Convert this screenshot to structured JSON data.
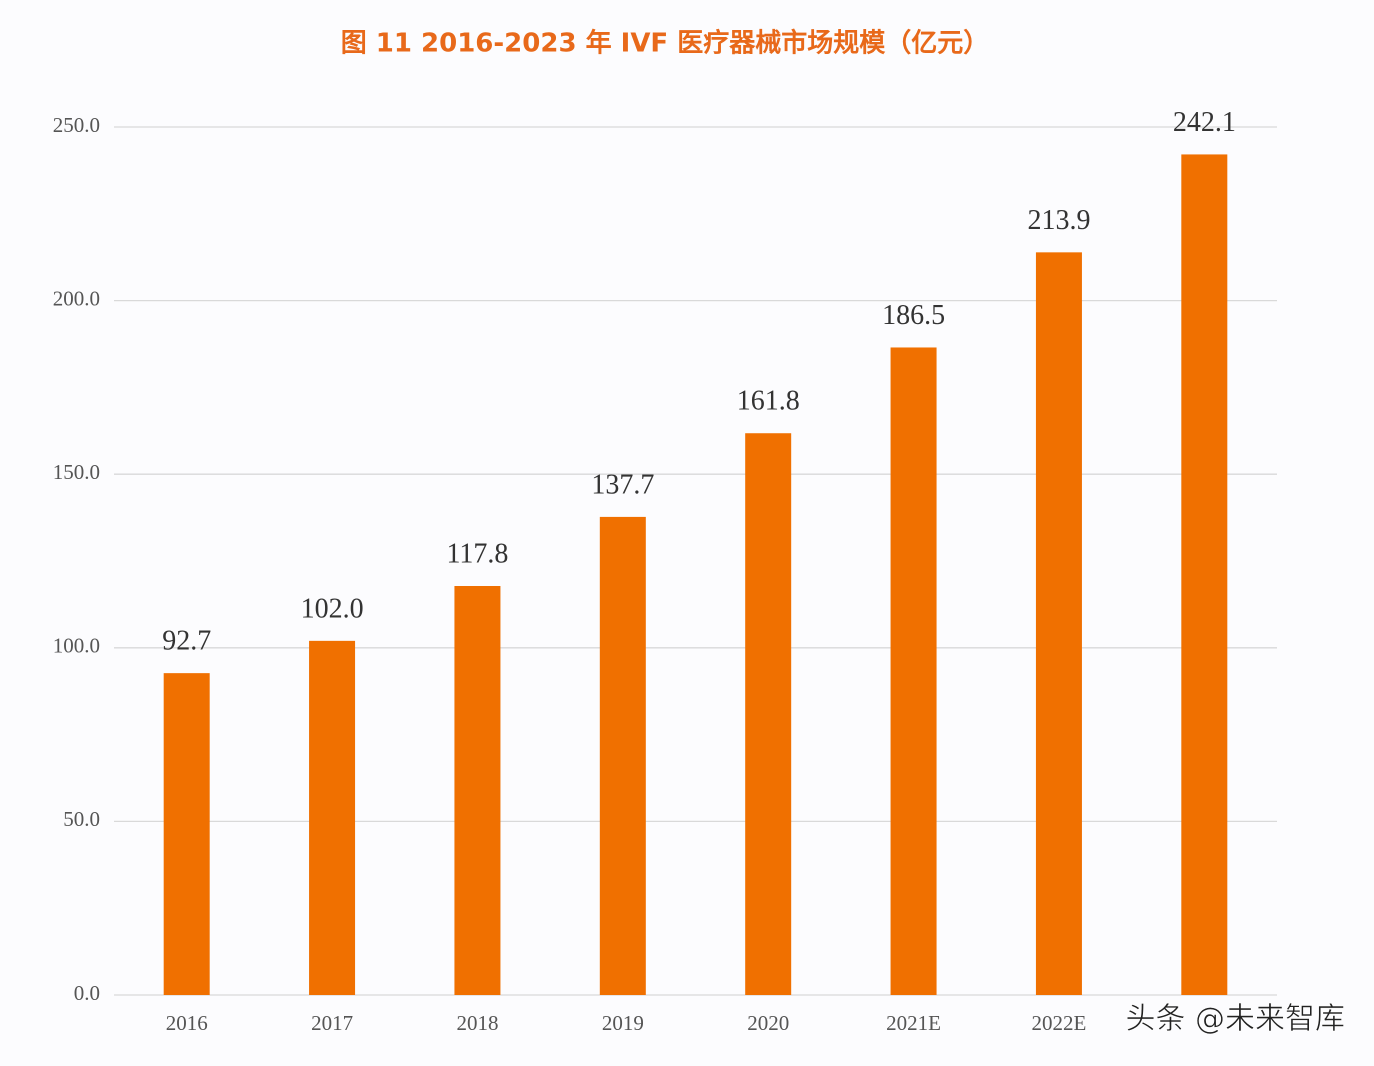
{
  "chart_data": {
    "type": "bar",
    "title": "图 11 2016-2023 年 IVF 医疗器械市场规模（亿元）",
    "categories": [
      "2016",
      "2017",
      "2018",
      "2019",
      "2020",
      "2021E",
      "2022E",
      null
    ],
    "values": [
      92.7,
      102.0,
      117.8,
      137.7,
      161.8,
      186.5,
      213.9,
      242.1
    ],
    "value_labels": [
      "92.7",
      "102.0",
      "117.8",
      "137.7",
      "161.8",
      "186.5",
      "213.9",
      "242.1"
    ],
    "color": "#f07000",
    "ylim": [
      0,
      250
    ],
    "yticks": [
      {
        "value": 0,
        "label": "0.0"
      },
      {
        "value": 50,
        "label": "50.0"
      },
      {
        "value": 100,
        "label": "100.0"
      },
      {
        "value": 150,
        "label": "150.0"
      },
      {
        "value": 200,
        "label": "200.0"
      },
      {
        "value": 250,
        "label": "250.0"
      }
    ],
    "grid": true,
    "watermark": "头条 @未来智库"
  }
}
